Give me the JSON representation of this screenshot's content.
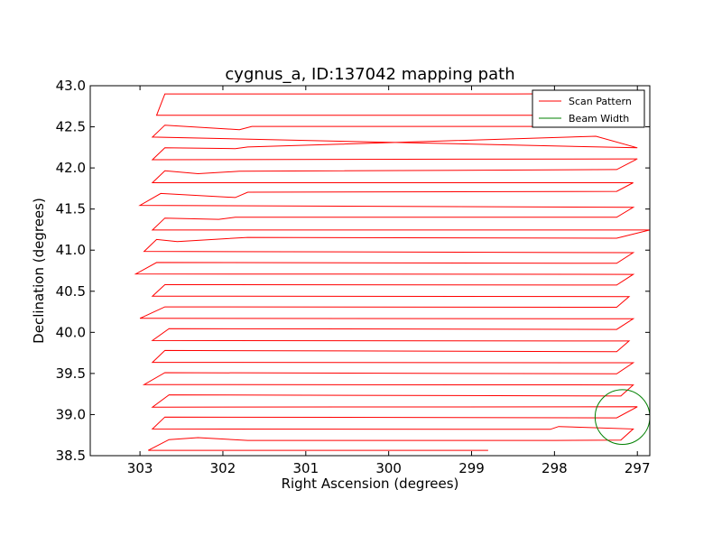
{
  "chart_data": {
    "type": "line",
    "title": "cygnus_a, ID:137042 mapping path",
    "xlabel": "Right Ascension (degrees)",
    "ylabel": "Declination (degrees)",
    "xlim": [
      303.6,
      296.85
    ],
    "ylim": [
      38.5,
      43.0
    ],
    "x_ticks": [
      {
        "value": 303,
        "label": "303"
      },
      {
        "value": 302,
        "label": "302"
      },
      {
        "value": 301,
        "label": "301"
      },
      {
        "value": 300,
        "label": "300"
      },
      {
        "value": 299,
        "label": "299"
      },
      {
        "value": 298,
        "label": "298"
      },
      {
        "value": 297,
        "label": "297"
      }
    ],
    "y_ticks": [
      {
        "value": 38.5,
        "label": "38.5"
      },
      {
        "value": 39.0,
        "label": "39.0"
      },
      {
        "value": 39.5,
        "label": "39.5"
      },
      {
        "value": 40.0,
        "label": "40.0"
      },
      {
        "value": 40.5,
        "label": "40.5"
      },
      {
        "value": 41.0,
        "label": "41.0"
      },
      {
        "value": 41.5,
        "label": "41.5"
      },
      {
        "value": 42.0,
        "label": "42.0"
      },
      {
        "value": 42.5,
        "label": "42.5"
      },
      {
        "value": 43.0,
        "label": "43.0"
      }
    ],
    "grid": false,
    "legend_position": "top-right",
    "legend": [
      {
        "label": "Scan Pattern",
        "color": "#ff0000"
      },
      {
        "label": "Beam Width",
        "color": "#008000"
      }
    ],
    "series": [
      {
        "name": "Scan Pattern",
        "color": "#ff0000",
        "points": [
          [
            298.8,
            38.565
          ],
          [
            302.9,
            38.565
          ],
          [
            302.65,
            38.695
          ],
          [
            302.3,
            38.72
          ],
          [
            301.7,
            38.685
          ],
          [
            298.0,
            38.685
          ],
          [
            297.2,
            38.69
          ],
          [
            297.05,
            38.825
          ],
          [
            297.95,
            38.855
          ],
          [
            298.05,
            38.82
          ],
          [
            302.85,
            38.825
          ],
          [
            302.7,
            38.97
          ],
          [
            297.25,
            38.96
          ],
          [
            297.0,
            39.095
          ],
          [
            302.85,
            39.09
          ],
          [
            302.65,
            39.24
          ],
          [
            297.2,
            39.225
          ],
          [
            297.05,
            39.36
          ],
          [
            302.95,
            39.365
          ],
          [
            302.7,
            39.51
          ],
          [
            297.25,
            39.495
          ],
          [
            297.05,
            39.63
          ],
          [
            302.85,
            39.635
          ],
          [
            302.7,
            39.78
          ],
          [
            297.25,
            39.765
          ],
          [
            297.1,
            39.895
          ],
          [
            302.85,
            39.9
          ],
          [
            302.65,
            40.045
          ],
          [
            297.25,
            40.035
          ],
          [
            297.05,
            40.165
          ],
          [
            303.0,
            40.17
          ],
          [
            302.7,
            40.31
          ],
          [
            297.25,
            40.305
          ],
          [
            297.1,
            40.435
          ],
          [
            302.85,
            40.44
          ],
          [
            302.7,
            40.58
          ],
          [
            297.25,
            40.575
          ],
          [
            297.05,
            40.705
          ],
          [
            303.05,
            40.71
          ],
          [
            302.8,
            40.85
          ],
          [
            297.25,
            40.84
          ],
          [
            297.05,
            40.97
          ],
          [
            302.95,
            40.985
          ],
          [
            302.8,
            41.13
          ],
          [
            302.55,
            41.105
          ],
          [
            301.7,
            41.155
          ],
          [
            297.25,
            41.145
          ],
          [
            296.85,
            41.245
          ],
          [
            302.85,
            41.245
          ],
          [
            302.7,
            41.39
          ],
          [
            302.05,
            41.375
          ],
          [
            301.85,
            41.4
          ],
          [
            297.25,
            41.4
          ],
          [
            297.05,
            41.52
          ],
          [
            303.0,
            41.545
          ],
          [
            302.75,
            41.69
          ],
          [
            301.85,
            41.64
          ],
          [
            301.7,
            41.705
          ],
          [
            297.25,
            41.715
          ],
          [
            297.05,
            41.82
          ],
          [
            302.85,
            41.82
          ],
          [
            302.7,
            41.965
          ],
          [
            302.3,
            41.93
          ],
          [
            301.8,
            41.96
          ],
          [
            297.25,
            41.98
          ],
          [
            297.0,
            42.11
          ],
          [
            302.85,
            42.1
          ],
          [
            302.7,
            42.245
          ],
          [
            301.85,
            42.235
          ],
          [
            301.7,
            42.255
          ],
          [
            297.5,
            42.385
          ],
          [
            297.0,
            42.245
          ],
          [
            302.85,
            42.375
          ],
          [
            302.7,
            42.52
          ],
          [
            301.8,
            42.465
          ],
          [
            301.65,
            42.505
          ],
          [
            297.25,
            42.505
          ],
          [
            297.1,
            42.64
          ],
          [
            302.8,
            42.64
          ],
          [
            302.7,
            42.9
          ],
          [
            298.5,
            42.9
          ],
          [
            297.25,
            42.905
          ]
        ]
      }
    ],
    "beam": {
      "name": "Beam Width",
      "color": "#008000",
      "center": [
        297.18,
        38.97
      ],
      "radius_deg": 0.33
    }
  }
}
